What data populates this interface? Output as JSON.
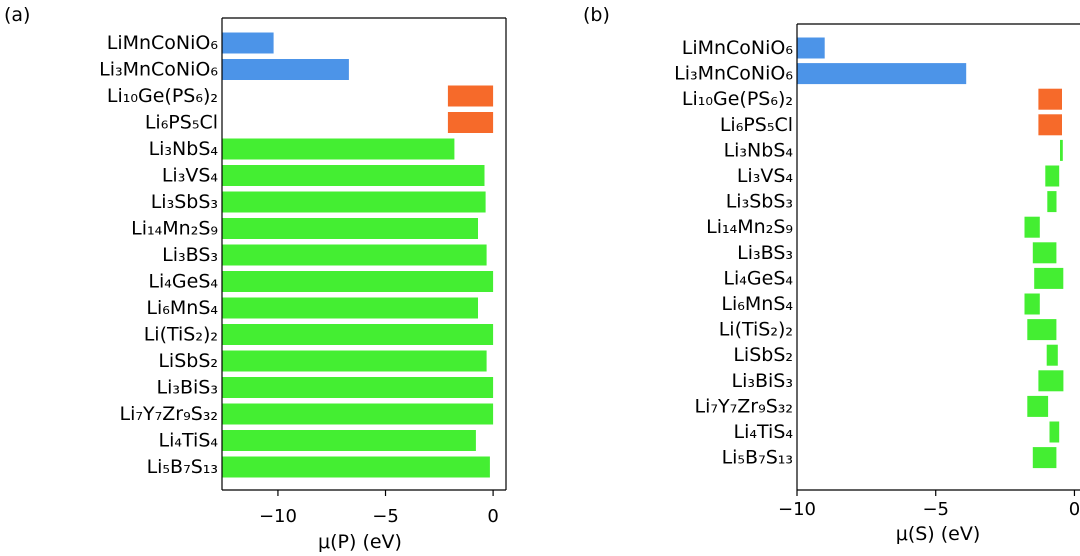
{
  "colors": {
    "blue": "#4c94e8",
    "orange": "#f66a2a",
    "green": "#44ee32"
  },
  "chart_data": [
    {
      "type": "bar",
      "orientation": "horizontal",
      "panel_label": "(a)",
      "xlabel": "μ(P) (eV)",
      "xlim": [
        -12.6,
        0.6
      ],
      "xticks": [
        -10,
        -5,
        0
      ],
      "xtick_labels": [
        "−10",
        "−5",
        "0"
      ],
      "grid": false,
      "categories": [
        "LiMnCoNiO₆",
        "Li₃MnCoNiO₆",
        "Li₁₀Ge(PS₆)₂",
        "Li₆PS₅Cl",
        "Li₃NbS₄",
        "Li₃VS₄",
        "Li₃SbS₃",
        "Li₁₄Mn₂S₉",
        "Li₃BS₃",
        "Li₄GeS₄",
        "Li₆MnS₄",
        "Li(TiS₂)₂",
        "LiSbS₂",
        "Li₃BiS₃",
        "Li₇Y₇Zr₉S₃₂",
        "Li₄TiS₄",
        "Li₅B₇S₁₃"
      ],
      "bars": [
        {
          "start": -12.6,
          "end": -10.2,
          "color": "blue"
        },
        {
          "start": -12.6,
          "end": -6.7,
          "color": "blue"
        },
        {
          "start": -2.1,
          "end": 0.0,
          "color": "orange"
        },
        {
          "start": -2.1,
          "end": 0.0,
          "color": "orange"
        },
        {
          "start": -12.6,
          "end": -1.8,
          "color": "green"
        },
        {
          "start": -12.6,
          "end": -0.4,
          "color": "green"
        },
        {
          "start": -12.6,
          "end": -0.35,
          "color": "green"
        },
        {
          "start": -12.6,
          "end": -0.7,
          "color": "green"
        },
        {
          "start": -12.6,
          "end": -0.3,
          "color": "green"
        },
        {
          "start": -12.6,
          "end": 0.0,
          "color": "green"
        },
        {
          "start": -12.6,
          "end": -0.7,
          "color": "green"
        },
        {
          "start": -12.6,
          "end": 0.0,
          "color": "green"
        },
        {
          "start": -12.6,
          "end": -0.3,
          "color": "green"
        },
        {
          "start": -12.6,
          "end": 0.0,
          "color": "green"
        },
        {
          "start": -12.6,
          "end": 0.0,
          "color": "green"
        },
        {
          "start": -12.6,
          "end": -0.8,
          "color": "green"
        },
        {
          "start": -12.6,
          "end": -0.15,
          "color": "green"
        }
      ]
    },
    {
      "type": "bar",
      "orientation": "horizontal",
      "panel_label": "(b)",
      "xlabel": "μ(S) (eV)",
      "xlim": [
        -10.0,
        0.2
      ],
      "xticks": [
        -10,
        -5,
        0
      ],
      "xtick_labels": [
        "−10",
        "−5",
        "0"
      ],
      "grid": false,
      "categories": [
        "LiMnCoNiO₆",
        "Li₃MnCoNiO₆",
        "Li₁₀Ge(PS₆)₂",
        "Li₆PS₅Cl",
        "Li₃NbS₄",
        "Li₃VS₄",
        "Li₃SbS₃",
        "Li₁₄Mn₂S₉",
        "Li₃BS₃",
        "Li₄GeS₄",
        "Li₆MnS₄",
        "Li(TiS₂)₂",
        "LiSbS₂",
        "Li₃BiS₃",
        "Li₇Y₇Zr₉S₃₂",
        "Li₄TiS₄",
        "Li₅B₇S₁₃"
      ],
      "bars": [
        {
          "start": -10.0,
          "end": -9.0,
          "color": "blue"
        },
        {
          "start": -10.0,
          "end": -3.9,
          "color": "blue"
        },
        {
          "start": -1.3,
          "end": -0.45,
          "color": "orange"
        },
        {
          "start": -1.3,
          "end": -0.45,
          "color": "orange"
        },
        {
          "start": -0.52,
          "end": -0.42,
          "color": "green"
        },
        {
          "start": -1.05,
          "end": -0.55,
          "color": "green"
        },
        {
          "start": -0.98,
          "end": -0.65,
          "color": "green"
        },
        {
          "start": -1.8,
          "end": -1.25,
          "color": "green"
        },
        {
          "start": -1.5,
          "end": -0.65,
          "color": "green"
        },
        {
          "start": -1.45,
          "end": -0.4,
          "color": "green"
        },
        {
          "start": -1.8,
          "end": -1.25,
          "color": "green"
        },
        {
          "start": -1.7,
          "end": -0.65,
          "color": "green"
        },
        {
          "start": -1.0,
          "end": -0.6,
          "color": "green"
        },
        {
          "start": -1.3,
          "end": -0.4,
          "color": "green"
        },
        {
          "start": -1.7,
          "end": -0.95,
          "color": "green"
        },
        {
          "start": -0.9,
          "end": -0.55,
          "color": "green"
        },
        {
          "start": -1.5,
          "end": -0.65,
          "color": "green"
        }
      ]
    }
  ]
}
